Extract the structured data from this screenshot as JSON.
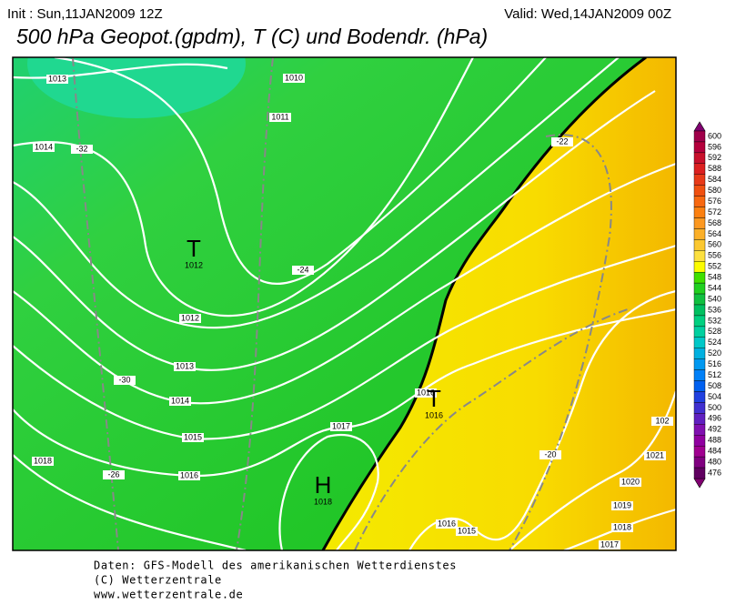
{
  "header": {
    "init": "Init : Sun,11JAN2009 12Z",
    "valid": "Valid: Wed,14JAN2009 00Z",
    "title": "500 hPa Geopot.(gpdm), T (C) und Bodendr. (hPa)"
  },
  "map": {
    "isobar_labels": [
      "1013",
      "1010",
      "1011",
      "1014",
      "1012",
      "1013",
      "1014",
      "1015",
      "1016",
      "1017",
      "1018",
      "1016",
      "1016",
      "1015",
      "1017",
      "1018",
      "1019",
      "1020",
      "1021",
      "102"
    ],
    "temperature_labels": [
      "-32",
      "-24",
      "-30",
      "-26",
      "-22",
      "-20"
    ],
    "pressure_centers": [
      {
        "symbol": "T",
        "value": "1012"
      },
      {
        "symbol": "H",
        "value": "1018"
      },
      {
        "symbol": "T",
        "value": "1016"
      }
    ]
  },
  "colorbar": {
    "labels": [
      "600",
      "596",
      "592",
      "588",
      "584",
      "580",
      "576",
      "572",
      "568",
      "564",
      "560",
      "556",
      "552",
      "548",
      "544",
      "540",
      "536",
      "532",
      "528",
      "524",
      "520",
      "516",
      "512",
      "508",
      "504",
      "500",
      "496",
      "492",
      "488",
      "484",
      "480",
      "476"
    ]
  },
  "footer": {
    "lines": [
      "Daten: GFS-Modell des amerikanischen Wetterdienstes",
      "(C) Wetterzentrale",
      "www.wetterzentrale.de"
    ]
  }
}
